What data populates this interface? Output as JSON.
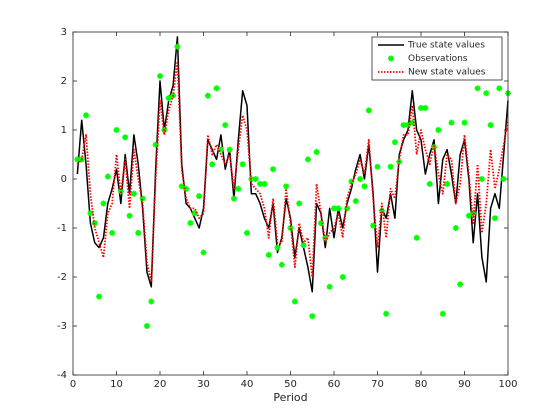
{
  "chart_data": {
    "type": "line",
    "xlabel": "Period",
    "x": [
      1,
      2,
      3,
      4,
      5,
      6,
      7,
      8,
      9,
      10,
      11,
      12,
      13,
      14,
      15,
      16,
      17,
      18,
      19,
      20,
      21,
      22,
      23,
      24,
      25,
      26,
      27,
      28,
      29,
      30,
      31,
      32,
      33,
      34,
      35,
      36,
      37,
      38,
      39,
      40,
      41,
      42,
      43,
      44,
      45,
      46,
      47,
      48,
      49,
      50,
      51,
      52,
      53,
      54,
      55,
      56,
      57,
      58,
      59,
      60,
      61,
      62,
      63,
      64,
      65,
      66,
      67,
      68,
      69,
      70,
      71,
      72,
      73,
      74,
      75,
      76,
      77,
      78,
      79,
      80,
      81,
      82,
      83,
      84,
      85,
      86,
      87,
      88,
      89,
      90,
      91,
      92,
      93,
      94,
      95,
      96,
      97,
      98,
      99,
      100
    ],
    "series": [
      {
        "name": "True state values",
        "color": "#000000",
        "style": "solid",
        "values": [
          0.1,
          1.2,
          0.3,
          -0.9,
          -1.3,
          -1.4,
          -1.2,
          -0.5,
          -0.2,
          0.2,
          -0.5,
          0.5,
          -0.3,
          0.9,
          0.3,
          -0.6,
          -1.9,
          -2.2,
          0.2,
          2.0,
          1.0,
          1.6,
          1.9,
          2.9,
          0.3,
          -0.5,
          -0.6,
          -0.8,
          -1.0,
          -0.6,
          0.8,
          0.6,
          0.4,
          0.9,
          0.2,
          0.6,
          -0.4,
          0.8,
          1.8,
          1.5,
          -0.3,
          -0.3,
          -0.5,
          -0.8,
          -1.0,
          -0.5,
          -1.5,
          -1.2,
          -0.4,
          -0.8,
          -1.6,
          -1.0,
          -1.4,
          -1.8,
          -2.3,
          -0.5,
          -0.7,
          -1.4,
          -0.6,
          -1.2,
          -0.6,
          -1.0,
          -0.5,
          -0.2,
          0.2,
          0.5,
          0.0,
          0.7,
          -0.3,
          -1.9,
          -0.6,
          -0.8,
          -0.3,
          -0.8,
          0.5,
          0.8,
          1.0,
          1.8,
          1.0,
          0.8,
          0.1,
          0.5,
          0.8,
          -0.5,
          0.4,
          0.6,
          0.1,
          -0.5,
          0.5,
          0.8,
          0.0,
          -1.3,
          -0.3,
          -1.6,
          -2.1,
          -0.6,
          -0.3,
          -0.6,
          0.5,
          1.6
        ]
      },
      {
        "name": "Observations",
        "color": "#00ff00",
        "style": "marker",
        "values": [
          0.4,
          0.4,
          1.3,
          -0.7,
          -0.9,
          -2.4,
          -0.5,
          0.05,
          -1.1,
          1.0,
          -0.25,
          0.85,
          -0.75,
          -0.3,
          -1.1,
          -0.4,
          -3.0,
          -2.5,
          0.7,
          2.1,
          1.0,
          1.65,
          1.7,
          2.7,
          -0.15,
          -0.2,
          -0.9,
          -0.7,
          -0.35,
          -1.5,
          1.7,
          0.3,
          1.85,
          0.6,
          1.1,
          0.6,
          -0.4,
          -0.2,
          0.3,
          -1.1,
          0,
          0,
          -0.1,
          -0.1,
          -1.55,
          0.2,
          -1.4,
          -1.75,
          -0.15,
          -1.0,
          -2.5,
          -0.5,
          -1.35,
          0.4,
          -2.8,
          0.55,
          -0.9,
          -1.2,
          -2.2,
          -0.6,
          -0.6,
          -2.0,
          -0.6,
          -0.05,
          -0.45,
          0,
          -0.15,
          1.4,
          -0.95,
          0.25,
          -0.65,
          -2.75,
          0.25,
          0.75,
          0.35,
          1.1,
          1.1,
          1.15,
          -1.2,
          1.45,
          1.45,
          -0.1,
          0.65,
          1.0,
          -2.75,
          -0.1,
          1.15,
          -1.0,
          -2.15,
          1.15,
          -0.75,
          -0.7,
          1.85,
          0,
          1.75,
          1.1,
          -0.8,
          1.85,
          0.0,
          1.75
        ]
      },
      {
        "name": "New state values",
        "color": "#ff0000",
        "style": "dotted",
        "values": [
          0.3,
          0.4,
          0.9,
          -0.3,
          -1.0,
          -1.3,
          -1.6,
          -0.7,
          -0.5,
          0.5,
          -0.3,
          0.4,
          -0.6,
          0.6,
          0.0,
          -0.5,
          -1.7,
          -2.1,
          0.0,
          1.6,
          0.9,
          1.4,
          1.7,
          2.4,
          0.2,
          -0.4,
          -0.6,
          -0.6,
          -0.8,
          -0.7,
          0.9,
          0.5,
          0.7,
          0.5,
          0.3,
          0.5,
          -0.2,
          0.6,
          1.3,
          1.0,
          -0.1,
          -0.2,
          -0.3,
          -0.6,
          -1.2,
          -0.4,
          -1.3,
          -1.3,
          -0.2,
          -0.9,
          -1.8,
          -0.9,
          -1.3,
          -1.2,
          -2.0,
          -0.1,
          -0.7,
          -1.3,
          -1.1,
          -1.0,
          -0.7,
          -1.2,
          -0.4,
          -0.1,
          0.1,
          0.4,
          0.1,
          0.8,
          -0.4,
          -1.4,
          -0.5,
          -1.2,
          -0.2,
          -0.4,
          0.4,
          0.9,
          0.9,
          1.5,
          0.5,
          1.0,
          0.6,
          0.3,
          0.7,
          0.1,
          -0.3,
          0.5,
          0.4,
          -0.5,
          -0.1,
          0.9,
          0.1,
          -0.9,
          0.3,
          -1.1,
          -0.5,
          0.6,
          -0.2,
          0.2,
          0.7,
          1.2
        ]
      }
    ],
    "xlim": [
      0,
      100
    ],
    "xticks": [
      0,
      10,
      20,
      30,
      40,
      50,
      60,
      70,
      80,
      90,
      100
    ],
    "ylim": [
      -4,
      3
    ],
    "yticks": [
      -4,
      -3,
      -2,
      -1,
      0,
      1,
      2,
      3
    ],
    "legend": "top-right",
    "grid": false
  }
}
